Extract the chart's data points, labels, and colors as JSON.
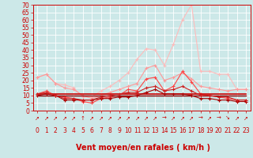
{
  "x": [
    0,
    1,
    2,
    3,
    4,
    5,
    6,
    7,
    8,
    9,
    10,
    11,
    12,
    13,
    14,
    15,
    16,
    17,
    18,
    19,
    20,
    21,
    22,
    23
  ],
  "series": [
    {
      "color": "#ffbbbb",
      "linewidth": 0.8,
      "marker": "+",
      "markersize": 3.0,
      "zorder": 2,
      "values": [
        22,
        24,
        18,
        17,
        15,
        9,
        9,
        13,
        16,
        20,
        25,
        34,
        41,
        40,
        30,
        44,
        60,
        70,
        26,
        26,
        24,
        24,
        14,
        14
      ]
    },
    {
      "color": "#ff9999",
      "linewidth": 0.8,
      "marker": "+",
      "markersize": 3.0,
      "zorder": 3,
      "values": [
        22,
        24,
        18,
        15,
        14,
        10,
        8,
        10,
        12,
        14,
        16,
        18,
        28,
        30,
        20,
        22,
        25,
        21,
        16,
        15,
        14,
        13,
        14,
        14
      ]
    },
    {
      "color": "#ff4444",
      "linewidth": 0.8,
      "marker": "+",
      "markersize": 3.0,
      "zorder": 4,
      "values": [
        11,
        13,
        10,
        9,
        8,
        6,
        5,
        8,
        9,
        10,
        14,
        13,
        21,
        22,
        13,
        16,
        26,
        19,
        11,
        10,
        9,
        8,
        7,
        7
      ]
    },
    {
      "color": "#cc0000",
      "linewidth": 1.2,
      "marker": null,
      "markersize": 0,
      "zorder": 5,
      "values": [
        11,
        11,
        11,
        11,
        11,
        11,
        11,
        11,
        11,
        11,
        11,
        11,
        11,
        11,
        11,
        11,
        11,
        11,
        11,
        11,
        11,
        11,
        11,
        11
      ]
    },
    {
      "color": "#880000",
      "linewidth": 1.0,
      "marker": null,
      "markersize": 0,
      "zorder": 5,
      "values": [
        10,
        10,
        10,
        10,
        10,
        10,
        10,
        10,
        10,
        10,
        10,
        10,
        10,
        10,
        10,
        10,
        10,
        10,
        10,
        10,
        10,
        10,
        10,
        10
      ]
    },
    {
      "color": "#aa0000",
      "linewidth": 0.8,
      "marker": "+",
      "markersize": 3.0,
      "zorder": 6,
      "values": [
        10,
        11,
        10,
        7,
        7,
        7,
        7,
        8,
        8,
        9,
        9,
        10,
        12,
        14,
        11,
        11,
        11,
        10,
        8,
        8,
        7,
        7,
        6,
        6
      ]
    },
    {
      "color": "#cc2222",
      "linewidth": 0.8,
      "marker": "+",
      "markersize": 3.0,
      "zorder": 6,
      "values": [
        11,
        12,
        10,
        8,
        8,
        7,
        7,
        9,
        10,
        11,
        12,
        12,
        15,
        16,
        13,
        14,
        16,
        13,
        10,
        10,
        9,
        9,
        7,
        7
      ]
    }
  ],
  "arrows": [
    "↗",
    "↗",
    "↗",
    "↗",
    "↗",
    "↑",
    "↗",
    "↗",
    "↗",
    "↗",
    "↗",
    "↗",
    "↗",
    "↗",
    "→",
    "↗",
    "↗",
    "↗",
    "→",
    "↗",
    "→",
    "↘",
    "↗",
    "↗"
  ],
  "xlabel": "Vent moyen/en rafales ( km/h )",
  "xlim": [
    -0.5,
    23.5
  ],
  "ylim": [
    0,
    70
  ],
  "yticks": [
    0,
    5,
    10,
    15,
    20,
    25,
    30,
    35,
    40,
    45,
    50,
    55,
    60,
    65,
    70
  ],
  "xticks": [
    0,
    1,
    2,
    3,
    4,
    5,
    6,
    7,
    8,
    9,
    10,
    11,
    12,
    13,
    14,
    15,
    16,
    17,
    18,
    19,
    20,
    21,
    22,
    23
  ],
  "bg_color": "#cce8e8",
  "grid_color": "#b8d8d8",
  "axis_color": "#cc0000",
  "text_color": "#cc0000",
  "xlabel_fontsize": 7,
  "tick_fontsize": 5.5,
  "arrow_fontsize": 5
}
